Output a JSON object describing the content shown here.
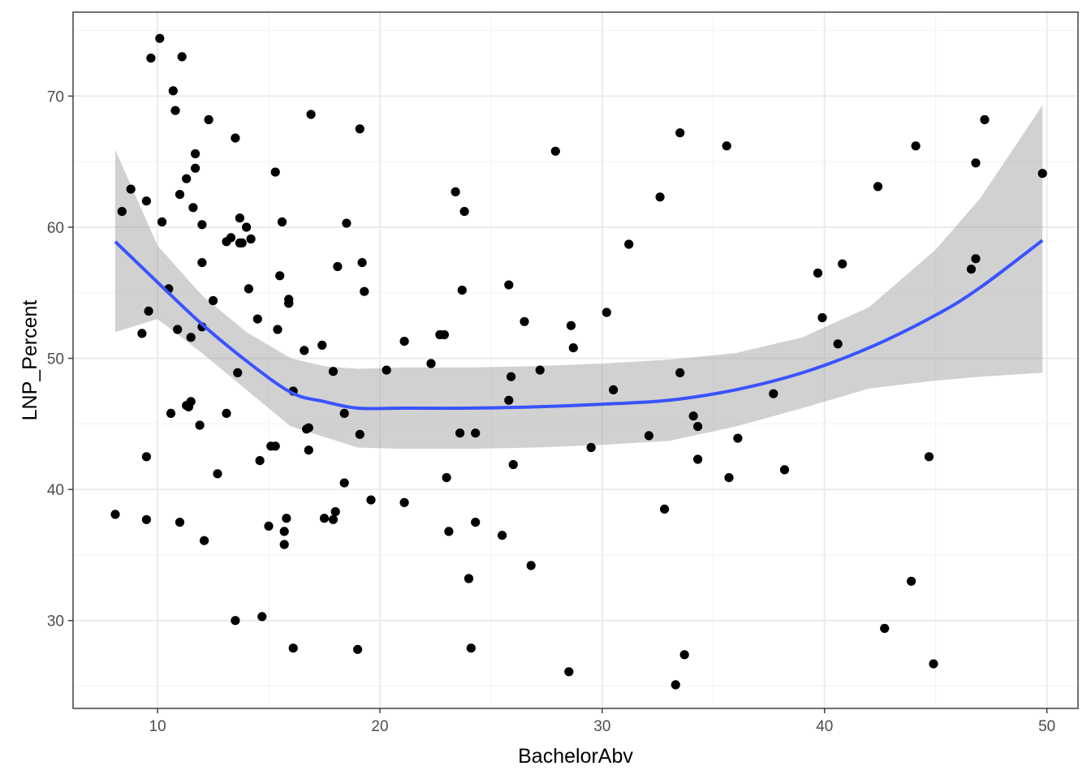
{
  "chart_data": {
    "type": "scatter",
    "title": "",
    "xlabel": "BachelorAbv",
    "ylabel": "LNP_Percent",
    "xlim": [
      6.2,
      51.4
    ],
    "ylim": [
      23.3,
      76.4
    ],
    "x_ticks": [
      10,
      20,
      30,
      40,
      50
    ],
    "y_ticks": [
      30,
      40,
      50,
      60,
      70
    ],
    "grid": true,
    "legend": "none",
    "colors": {
      "points": "#000000",
      "smooth_line": "#3a53ff",
      "confidence_band": "#999999",
      "grid_major": "#ebebeb",
      "grid_minor": "#f2f2f2",
      "panel_border": "#333333"
    },
    "points": [
      [
        8.1,
        38.1
      ],
      [
        8.4,
        61.2
      ],
      [
        8.8,
        62.9
      ],
      [
        9.3,
        51.9
      ],
      [
        9.5,
        42.5
      ],
      [
        9.5,
        37.7
      ],
      [
        9.5,
        62.0
      ],
      [
        9.6,
        53.6
      ],
      [
        9.7,
        72.9
      ],
      [
        10.1,
        74.4
      ],
      [
        10.2,
        60.4
      ],
      [
        10.5,
        55.3
      ],
      [
        10.6,
        45.8
      ],
      [
        10.7,
        70.4
      ],
      [
        10.8,
        68.9
      ],
      [
        10.9,
        52.2
      ],
      [
        11.0,
        37.5
      ],
      [
        11.0,
        62.5
      ],
      [
        11.1,
        73.0
      ],
      [
        11.3,
        63.7
      ],
      [
        11.3,
        46.4
      ],
      [
        11.4,
        46.3
      ],
      [
        11.5,
        51.6
      ],
      [
        11.5,
        46.7
      ],
      [
        11.6,
        61.5
      ],
      [
        11.7,
        64.5
      ],
      [
        11.7,
        65.6
      ],
      [
        11.9,
        44.9
      ],
      [
        12.0,
        52.4
      ],
      [
        12.0,
        57.3
      ],
      [
        12.0,
        60.2
      ],
      [
        12.1,
        36.1
      ],
      [
        12.3,
        68.2
      ],
      [
        12.5,
        54.4
      ],
      [
        12.7,
        41.2
      ],
      [
        13.1,
        45.8
      ],
      [
        13.1,
        58.9
      ],
      [
        13.3,
        59.2
      ],
      [
        13.5,
        30.0
      ],
      [
        13.5,
        66.8
      ],
      [
        13.6,
        48.9
      ],
      [
        13.7,
        58.8
      ],
      [
        13.7,
        60.7
      ],
      [
        13.8,
        58.8
      ],
      [
        14.0,
        60.0
      ],
      [
        14.1,
        55.3
      ],
      [
        14.2,
        59.1
      ],
      [
        14.5,
        53.0
      ],
      [
        14.6,
        42.2
      ],
      [
        14.7,
        30.3
      ],
      [
        15.0,
        37.2
      ],
      [
        15.1,
        43.3
      ],
      [
        15.3,
        43.3
      ],
      [
        15.3,
        64.2
      ],
      [
        15.4,
        52.2
      ],
      [
        15.5,
        56.3
      ],
      [
        15.6,
        60.4
      ],
      [
        15.7,
        35.8
      ],
      [
        15.7,
        36.8
      ],
      [
        15.8,
        37.8
      ],
      [
        15.9,
        54.2
      ],
      [
        15.9,
        54.5
      ],
      [
        15.9,
        54.2
      ],
      [
        16.1,
        27.9
      ],
      [
        16.1,
        47.5
      ],
      [
        16.6,
        50.6
      ],
      [
        16.7,
        44.6
      ],
      [
        16.8,
        43.0
      ],
      [
        16.8,
        44.7
      ],
      [
        16.9,
        68.6
      ],
      [
        17.4,
        51.0
      ],
      [
        17.5,
        37.8
      ],
      [
        17.9,
        49.0
      ],
      [
        17.9,
        37.7
      ],
      [
        18.0,
        38.3
      ],
      [
        18.1,
        57.0
      ],
      [
        18.4,
        45.8
      ],
      [
        18.4,
        40.5
      ],
      [
        18.5,
        60.3
      ],
      [
        19.0,
        27.8
      ],
      [
        19.1,
        44.2
      ],
      [
        19.1,
        67.5
      ],
      [
        19.2,
        57.3
      ],
      [
        19.3,
        55.1
      ],
      [
        19.6,
        39.2
      ],
      [
        20.3,
        49.1
      ],
      [
        21.1,
        39.0
      ],
      [
        21.1,
        51.3
      ],
      [
        22.3,
        49.6
      ],
      [
        22.7,
        51.8
      ],
      [
        22.9,
        51.8
      ],
      [
        23.0,
        40.9
      ],
      [
        23.1,
        36.8
      ],
      [
        23.4,
        62.7
      ],
      [
        23.6,
        44.3
      ],
      [
        23.7,
        55.2
      ],
      [
        23.8,
        61.2
      ],
      [
        24.0,
        33.2
      ],
      [
        24.1,
        27.9
      ],
      [
        24.3,
        37.5
      ],
      [
        24.3,
        44.3
      ],
      [
        25.5,
        36.5
      ],
      [
        25.8,
        55.6
      ],
      [
        25.8,
        46.8
      ],
      [
        25.9,
        48.6
      ],
      [
        26.0,
        41.9
      ],
      [
        26.5,
        52.8
      ],
      [
        26.8,
        34.2
      ],
      [
        27.2,
        49.1
      ],
      [
        27.9,
        65.8
      ],
      [
        28.5,
        26.1
      ],
      [
        28.6,
        52.5
      ],
      [
        28.7,
        50.8
      ],
      [
        29.5,
        43.2
      ],
      [
        30.2,
        53.5
      ],
      [
        30.5,
        47.6
      ],
      [
        31.2,
        58.7
      ],
      [
        32.1,
        44.1
      ],
      [
        32.6,
        62.3
      ],
      [
        32.8,
        38.5
      ],
      [
        33.3,
        25.1
      ],
      [
        33.5,
        48.9
      ],
      [
        33.5,
        67.2
      ],
      [
        33.7,
        27.4
      ],
      [
        34.1,
        45.6
      ],
      [
        34.3,
        44.8
      ],
      [
        34.3,
        42.3
      ],
      [
        35.6,
        66.2
      ],
      [
        35.7,
        40.9
      ],
      [
        36.1,
        43.9
      ],
      [
        37.7,
        47.3
      ],
      [
        38.2,
        41.5
      ],
      [
        39.7,
        56.5
      ],
      [
        39.9,
        53.1
      ],
      [
        40.6,
        51.1
      ],
      [
        40.8,
        57.2
      ],
      [
        42.4,
        63.1
      ],
      [
        42.7,
        29.4
      ],
      [
        43.9,
        33.0
      ],
      [
        44.1,
        66.2
      ],
      [
        44.7,
        42.5
      ],
      [
        44.9,
        26.7
      ],
      [
        46.6,
        56.8
      ],
      [
        46.8,
        57.6
      ],
      [
        46.8,
        64.9
      ],
      [
        47.2,
        68.2
      ],
      [
        49.8,
        64.1
      ]
    ],
    "smooth": {
      "x": [
        8.1,
        10,
        12,
        14,
        16,
        17.5,
        19,
        21,
        24,
        27,
        30,
        33,
        36,
        39,
        42,
        45,
        47,
        49.8
      ],
      "y": [
        58.9,
        55.8,
        52.6,
        49.8,
        47.4,
        46.7,
        46.2,
        46.2,
        46.2,
        46.3,
        46.5,
        46.8,
        47.6,
        48.9,
        50.8,
        53.3,
        55.4,
        59.0
      ],
      "upper": [
        65.9,
        58.6,
        54.8,
        52.0,
        50.0,
        49.4,
        49.2,
        49.3,
        49.3,
        49.4,
        49.6,
        49.9,
        50.4,
        51.6,
        53.9,
        58.3,
        62.2,
        69.3
      ],
      "lower": [
        52.0,
        53.0,
        50.4,
        47.6,
        44.8,
        44.0,
        43.2,
        43.1,
        43.1,
        43.2,
        43.4,
        43.7,
        44.8,
        46.2,
        47.7,
        48.3,
        48.6,
        48.9
      ]
    }
  }
}
